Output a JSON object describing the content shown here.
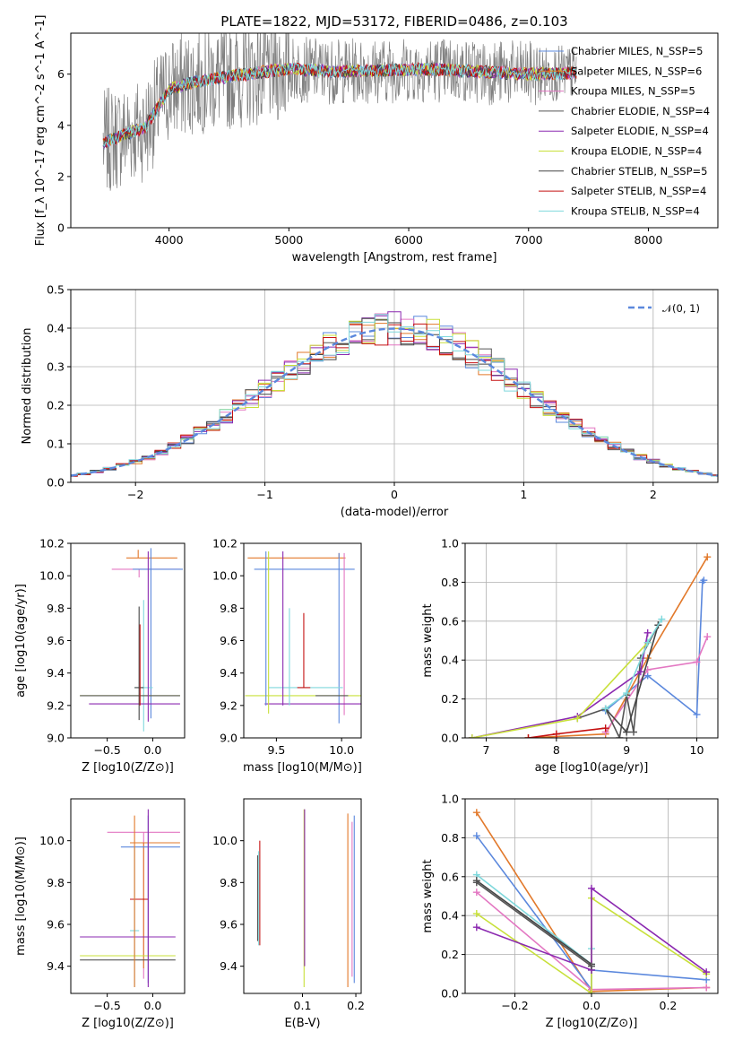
{
  "figure": {
    "title": "PLATE=1822, MJD=53172, FIBERID=0486, z=0.103"
  },
  "colors": {
    "Chabrier MILES": "#5b88dd",
    "Salpeter MILES": "#e2792b",
    "Kroupa MILES": "#e377c2",
    "Chabrier ELODIE": "#555555",
    "Salpeter ELODIE": "#8b29b0",
    "Kroupa ELODIE": "#c8e03a",
    "Chabrier STELIB": "#444444",
    "Salpeter STELIB": "#c51010",
    "Kroupa STELIB": "#7fd8dc",
    "data": "#808080"
  },
  "chart_data": [
    {
      "id": "spectrum",
      "type": "line",
      "title": "PLATE=1822, MJD=53172, FIBERID=0486, z=0.103",
      "xlabel": "wavelength [Angstrom, rest frame]",
      "ylabel": "Flux [f_λ 10^-17 erg cm^-2 s^-1 A^-1]",
      "xlim": [
        3180,
        8580
      ],
      "ylim": [
        0,
        7.6
      ],
      "xticks": [
        4000,
        5000,
        6000,
        7000,
        8000
      ],
      "yticks": [
        0,
        2,
        4,
        6
      ],
      "legend_position": "upper-right",
      "grid": false,
      "continuum_x": [
        3450,
        3600,
        3800,
        4000,
        4200,
        4500,
        4800,
        5000,
        5400,
        5800,
        6200,
        6600,
        7000,
        7400
      ],
      "continuum_y": [
        3.3,
        3.6,
        3.9,
        5.4,
        5.7,
        5.9,
        6.1,
        6.2,
        6.1,
        6.15,
        6.2,
        6.1,
        6.0,
        6.05
      ],
      "legend": [
        {
          "label": "Chabrier MILES, N_SSP=5",
          "color": "#5b88dd"
        },
        {
          "label": "Salpeter MILES, N_SSP=6",
          "color": "#e2792b"
        },
        {
          "label": "Kroupa MILES, N_SSP=5",
          "color": "#e377c2"
        },
        {
          "label": "Chabrier ELODIE, N_SSP=4",
          "color": "#555555"
        },
        {
          "label": "Salpeter ELODIE, N_SSP=4",
          "color": "#8b29b0"
        },
        {
          "label": "Kroupa ELODIE, N_SSP=4",
          "color": "#c8e03a"
        },
        {
          "label": "Chabrier STELIB, N_SSP=5",
          "color": "#444444"
        },
        {
          "label": "Salpeter STELIB, N_SSP=4",
          "color": "#c51010"
        },
        {
          "label": "Kroupa STELIB, N_SSP=4",
          "color": "#7fd8dc"
        }
      ]
    },
    {
      "id": "residuals",
      "type": "line",
      "xlabel": "(data-model)/error",
      "ylabel": "Normed distribution",
      "xlim": [
        -2.5,
        2.5
      ],
      "ylim": [
        0,
        0.5
      ],
      "xticks": [
        -2,
        -1,
        0,
        1,
        2
      ],
      "yticks": [
        0.0,
        0.1,
        0.2,
        0.3,
        0.4,
        0.5
      ],
      "grid": true,
      "legend": [
        {
          "label": "𝒩(0, 1)",
          "color": "#5b88dd",
          "style": "dashed"
        }
      ],
      "bin_width": 0.1
    },
    {
      "id": "age_vs_Z",
      "type": "errorbar",
      "xlabel": "Z [log10(Z/Z⊙)]",
      "ylabel": "age [log10(age/yr)]",
      "xlim": [
        -0.9,
        0.35
      ],
      "ylim": [
        9.0,
        10.2
      ],
      "xticks": [
        -0.5,
        0.0
      ],
      "yticks": [
        9.0,
        9.2,
        9.4,
        9.6,
        9.8,
        10.0,
        10.2
      ],
      "points": [
        {
          "x": -0.15,
          "y": 10.04,
          "xerr": [
            0.3,
            0.45
          ],
          "yerr": [
            0.05,
            0.0
          ],
          "color": "#e377c2"
        },
        {
          "x": -0.16,
          "y": 10.11,
          "xerr": [
            0.13,
            0.43
          ],
          "yerr": [
            0.0,
            0.05
          ],
          "color": "#e2792b"
        },
        {
          "x": -0.02,
          "y": 10.04,
          "xerr": [
            0.2,
            0.35
          ],
          "yerr": [
            0.92,
            0.13
          ],
          "color": "#5b88dd"
        },
        {
          "x": -0.1,
          "y": 9.31,
          "xerr": [
            0.1,
            0.1
          ],
          "yerr": [
            0.27,
            0.54
          ],
          "color": "#7fd8dc"
        },
        {
          "x": -0.2,
          "y": 9.26,
          "xerr": [
            0.6,
            0.5
          ],
          "yerr": [
            0.0,
            0.0
          ],
          "color": "#c8e03a"
        },
        {
          "x": -0.25,
          "y": 9.21,
          "xerr": [
            0.45,
            0.55
          ],
          "yerr": [
            0.0,
            0.0
          ],
          "color": "#8b29b0"
        },
        {
          "x": -0.2,
          "y": 9.26,
          "xerr": [
            0.6,
            0.5
          ],
          "yerr": [
            0.0,
            0.0
          ],
          "color": "#555555"
        },
        {
          "x": -0.15,
          "y": 9.31,
          "xerr": [
            0.05,
            0.05
          ],
          "yerr": [
            0.2,
            0.5
          ],
          "color": "#444444"
        },
        {
          "x": -0.05,
          "y": 9.2,
          "xerr": [
            0.0,
            0.0
          ],
          "yerr": [
            0.1,
            0.95
          ],
          "color": "#8b29b0"
        },
        {
          "x": -0.14,
          "y": 9.5,
          "xerr": [
            0.0,
            0.0
          ],
          "yerr": [
            0.3,
            0.2
          ],
          "color": "#c51010"
        }
      ]
    },
    {
      "id": "age_vs_mass",
      "type": "errorbar",
      "xlabel": "mass [log10(M/M⊙)]",
      "ylabel": "",
      "xlim": [
        9.25,
        10.15
      ],
      "ylim": [
        9.0,
        10.2
      ],
      "xticks": [
        9.5,
        10.0
      ],
      "yticks": [
        9.0,
        9.2,
        9.4,
        9.6,
        9.8,
        10.0,
        10.2
      ],
      "points": [
        {
          "x": 9.98,
          "y": 10.11,
          "xerr": [
            0.7,
            0.05
          ],
          "yerr": [
            0.0,
            0.03
          ],
          "color": "#e2792b"
        },
        {
          "x": 9.98,
          "y": 10.04,
          "xerr": [
            0.65,
            0.12
          ],
          "yerr": [
            0.95,
            0.1
          ],
          "color": "#5b88dd"
        },
        {
          "x": 10.02,
          "y": 10.04,
          "xerr": [
            0.0,
            0.0
          ],
          "yerr": [
            0.9,
            0.1
          ],
          "color": "#e377c2"
        },
        {
          "x": 9.71,
          "y": 9.31,
          "xerr": [
            0.27,
            0.3
          ],
          "yerr": [
            0.0,
            0.0
          ],
          "color": "#7fd8dc"
        },
        {
          "x": 9.71,
          "y": 9.26,
          "xerr": [
            0.45,
            0.45
          ],
          "yerr": [
            0.0,
            0.0
          ],
          "color": "#c8e03a"
        },
        {
          "x": 9.71,
          "y": 9.21,
          "xerr": [
            0.3,
            0.45
          ],
          "yerr": [
            0.0,
            0.0
          ],
          "color": "#8b29b0"
        },
        {
          "x": 9.71,
          "y": 9.31,
          "xerr": [
            0.05,
            0.05
          ],
          "yerr": [
            0.0,
            0.46
          ],
          "color": "#c51010"
        },
        {
          "x": 9.44,
          "y": 9.6,
          "xerr": [
            0.0,
            0.0
          ],
          "yerr": [
            0.45,
            0.55
          ],
          "color": "#c8e03a"
        },
        {
          "x": 9.42,
          "y": 9.6,
          "xerr": [
            0.0,
            0.0
          ],
          "yerr": [
            0.4,
            0.55
          ],
          "color": "#5b88dd"
        },
        {
          "x": 9.55,
          "y": 9.5,
          "xerr": [
            0.0,
            0.0
          ],
          "yerr": [
            0.3,
            0.65
          ],
          "color": "#8b29b0"
        },
        {
          "x": 9.6,
          "y": 9.5,
          "xerr": [
            0.0,
            0.0
          ],
          "yerr": [
            0.3,
            0.3
          ],
          "color": "#7fd8dc"
        },
        {
          "x": 9.8,
          "y": 9.26,
          "xerr": [
            0.0,
            0.25
          ],
          "yerr": [
            0.0,
            0.0
          ],
          "color": "#555555"
        }
      ]
    },
    {
      "id": "weight_vs_age",
      "type": "line",
      "xlabel": "age [log10(age/yr)]",
      "ylabel": "mass weight",
      "xlim": [
        6.7,
        10.3
      ],
      "ylim": [
        0,
        1.0
      ],
      "xticks": [
        7,
        8,
        9,
        10
      ],
      "yticks": [
        0.0,
        0.2,
        0.4,
        0.6,
        0.8,
        1.0
      ],
      "grid": true,
      "series": [
        {
          "color": "#5b88dd",
          "x": [
            8.7,
            9.3,
            10.0,
            10.08,
            10.1
          ],
          "y": [
            0.14,
            0.32,
            0.12,
            0.8,
            0.81
          ]
        },
        {
          "color": "#e2792b",
          "x": [
            7.6,
            8.7,
            9.3,
            10.15
          ],
          "y": [
            0.0,
            0.02,
            0.41,
            0.93
          ]
        },
        {
          "color": "#e377c2",
          "x": [
            8.7,
            9.3,
            10.0,
            10.15
          ],
          "y": [
            0.03,
            0.35,
            0.39,
            0.52
          ]
        },
        {
          "color": "#555555",
          "x": [
            8.3,
            8.7,
            8.9,
            9.0,
            9.1,
            9.2,
            9.45
          ],
          "y": [
            0.1,
            0.15,
            0.0,
            0.22,
            0.03,
            0.41,
            0.58
          ]
        },
        {
          "color": "#8b29b0",
          "x": [
            6.8,
            8.3,
            9.2,
            9.3
          ],
          "y": [
            0.0,
            0.11,
            0.34,
            0.54
          ]
        },
        {
          "color": "#c8e03a",
          "x": [
            6.8,
            8.3,
            9.3
          ],
          "y": [
            0.0,
            0.1,
            0.49
          ]
        },
        {
          "color": "#444444",
          "x": [
            8.7,
            9.0,
            9.45
          ],
          "y": [
            0.15,
            0.03,
            0.58
          ]
        },
        {
          "color": "#c51010",
          "x": [
            7.6,
            8.0,
            8.7
          ],
          "y": [
            0.0,
            0.02,
            0.05
          ]
        },
        {
          "color": "#7fd8dc",
          "x": [
            8.7,
            9.0,
            9.3,
            9.5
          ],
          "y": [
            0.15,
            0.23,
            0.49,
            0.61
          ]
        }
      ]
    },
    {
      "id": "mass_vs_Z",
      "type": "errorbar",
      "xlabel": "Z [log10(Z/Z⊙)]",
      "ylabel": "mass [log10(M/M⊙)]",
      "xlim": [
        -0.9,
        0.35
      ],
      "ylim": [
        9.27,
        10.2
      ],
      "xticks": [
        -0.5,
        0.0
      ],
      "yticks": [
        9.4,
        9.6,
        9.8,
        10.0
      ],
      "points": [
        {
          "x": -0.1,
          "y": 10.04,
          "xerr": [
            0.4,
            0.4
          ],
          "yerr": [
            0.7,
            0.0
          ],
          "color": "#e377c2"
        },
        {
          "x": -0.1,
          "y": 9.99,
          "xerr": [
            0.15,
            0.4
          ],
          "yerr": [
            0.6,
            0.0
          ],
          "color": "#e2792b"
        },
        {
          "x": -0.05,
          "y": 9.97,
          "xerr": [
            0.3,
            0.35
          ],
          "yerr": [
            0.65,
            0.15
          ],
          "color": "#5b88dd"
        },
        {
          "x": -0.15,
          "y": 9.72,
          "xerr": [
            0.1,
            0.1
          ],
          "yerr": [
            0.0,
            0.0
          ],
          "color": "#c51010"
        },
        {
          "x": -0.2,
          "y": 9.57,
          "xerr": [
            0.05,
            0.05
          ],
          "yerr": [
            0.27,
            0.4
          ],
          "color": "#7fd8dc"
        },
        {
          "x": -0.25,
          "y": 9.54,
          "xerr": [
            0.55,
            0.5
          ],
          "yerr": [
            0.0,
            0.0
          ],
          "color": "#8b29b0"
        },
        {
          "x": -0.25,
          "y": 9.45,
          "xerr": [
            0.55,
            0.5
          ],
          "yerr": [
            0.0,
            0.0
          ],
          "color": "#c8e03a"
        },
        {
          "x": -0.25,
          "y": 9.43,
          "xerr": [
            0.55,
            0.5
          ],
          "yerr": [
            0.0,
            0.0
          ],
          "color": "#555555"
        },
        {
          "x": -0.05,
          "y": 9.7,
          "xerr": [
            0.0,
            0.0
          ],
          "yerr": [
            0.4,
            0.45
          ],
          "color": "#8b29b0"
        },
        {
          "x": -0.2,
          "y": 9.7,
          "xerr": [
            0.0,
            0.0
          ],
          "yerr": [
            0.4,
            0.42
          ],
          "color": "#e2792b"
        }
      ]
    },
    {
      "id": "mass_vs_EBV",
      "type": "errorbar",
      "xlabel": "E(B-V)",
      "ylabel": "",
      "xlim": [
        -0.01,
        0.21
      ],
      "ylim": [
        9.27,
        10.2
      ],
      "xticks": [
        0.1,
        0.2
      ],
      "yticks": [
        9.4,
        9.6,
        9.8,
        10.0
      ],
      "points": [
        {
          "x": 0.02,
          "y": 9.7,
          "xerr": [
            0,
            0
          ],
          "yerr": [
            0.2,
            0.3
          ],
          "color": "#c51010"
        },
        {
          "x": 0.018,
          "y": 9.7,
          "xerr": [
            0,
            0
          ],
          "yerr": [
            0.2,
            0.25
          ],
          "color": "#7fd8dc"
        },
        {
          "x": 0.016,
          "y": 9.7,
          "xerr": [
            0,
            0
          ],
          "yerr": [
            0.18,
            0.23
          ],
          "color": "#555555"
        },
        {
          "x": 0.103,
          "y": 9.7,
          "xerr": [
            0,
            0
          ],
          "yerr": [
            0.4,
            0.45
          ],
          "color": "#c8e03a"
        },
        {
          "x": 0.104,
          "y": 9.75,
          "xerr": [
            0,
            0
          ],
          "yerr": [
            0.35,
            0.4
          ],
          "color": "#8b29b0"
        },
        {
          "x": 0.185,
          "y": 9.6,
          "xerr": [
            0,
            0
          ],
          "yerr": [
            0.3,
            0.53
          ],
          "color": "#e2792b"
        },
        {
          "x": 0.193,
          "y": 9.7,
          "xerr": [
            0,
            0
          ],
          "yerr": [
            0.35,
            0.39
          ],
          "color": "#e377c2"
        },
        {
          "x": 0.197,
          "y": 9.7,
          "xerr": [
            0,
            0
          ],
          "yerr": [
            0.38,
            0.42
          ],
          "color": "#5b88dd"
        }
      ]
    },
    {
      "id": "weight_vs_Z",
      "type": "line",
      "xlabel": "Z [log10(Z/Z⊙)]",
      "ylabel": "mass weight",
      "xlim": [
        -0.33,
        0.33
      ],
      "ylim": [
        0,
        1.0
      ],
      "xticks": [
        -0.2,
        0.0,
        0.2
      ],
      "yticks": [
        0.0,
        0.2,
        0.4,
        0.6,
        0.8,
        1.0
      ],
      "grid": true,
      "series": [
        {
          "color": "#e2792b",
          "x": [
            -0.3,
            0.0,
            0.3
          ],
          "y": [
            0.93,
            0.01,
            0.03
          ]
        },
        {
          "color": "#5b88dd",
          "x": [
            -0.3,
            0.0,
            0.0,
            0.3
          ],
          "y": [
            0.81,
            0.02,
            0.12,
            0.07
          ]
        },
        {
          "color": "#7fd8dc",
          "x": [
            -0.3,
            0.0,
            0.0
          ],
          "y": [
            0.61,
            0.15,
            0.23
          ]
        },
        {
          "color": "#444444",
          "x": [
            -0.3,
            0.0
          ],
          "y": [
            0.58,
            0.15
          ]
        },
        {
          "color": "#e377c2",
          "x": [
            -0.3,
            0.0,
            0.3
          ],
          "y": [
            0.52,
            0.02,
            0.03
          ]
        },
        {
          "color": "#c8e03a",
          "x": [
            -0.3,
            0.0,
            0.0,
            0.3
          ],
          "y": [
            0.41,
            0.0,
            0.49,
            0.1
          ]
        },
        {
          "color": "#8b29b0",
          "x": [
            -0.3,
            0.0,
            0.0,
            0.3
          ],
          "y": [
            0.34,
            0.12,
            0.54,
            0.11
          ]
        },
        {
          "color": "#555555",
          "x": [
            -0.3,
            0.0
          ],
          "y": [
            0.57,
            0.14
          ]
        }
      ]
    }
  ]
}
